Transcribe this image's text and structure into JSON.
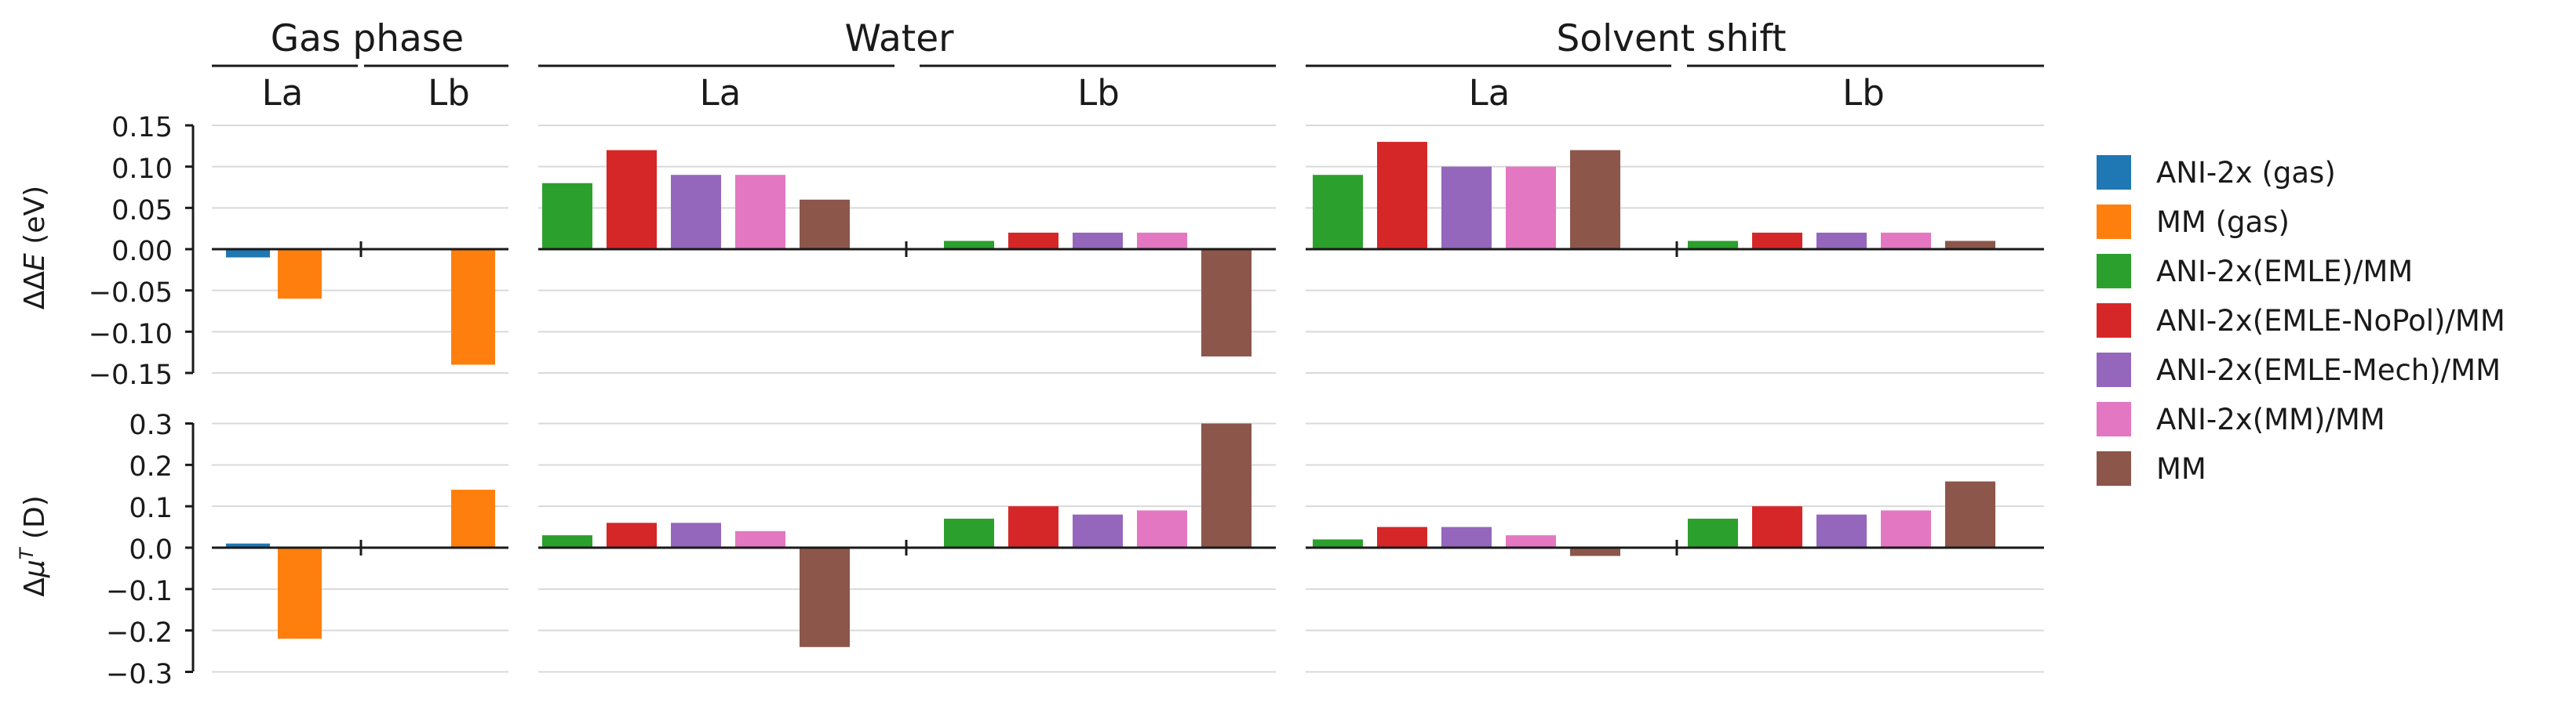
{
  "titles": {
    "gas": "Gas phase",
    "water": "Water",
    "shift": "Solvent shift",
    "la": "La",
    "lb": "Lb"
  },
  "rows": [
    {
      "key": "energy",
      "ylabel_prefix": "ΔΔ",
      "ylabel_symbol": "E",
      "ylabel_suffix": " (eV)",
      "ylim": [
        -0.15,
        0.15
      ],
      "ticks": [
        "0.15",
        "0.10",
        "0.05",
        "0.00",
        "−0.05",
        "−0.10",
        "−0.15"
      ]
    },
    {
      "key": "dipole",
      "ylabel_prefix": "Δ",
      "ylabel_symbol": "μ",
      "ylabel_sup": "T",
      "ylabel_suffix": " (D)",
      "ylim": [
        -0.3,
        0.3
      ],
      "ticks": [
        "0.3",
        "0.2",
        "0.1",
        "0.0",
        "−0.1",
        "−0.2",
        "−0.3"
      ]
    }
  ],
  "legend": [
    {
      "name": "ANI-2x (gas)",
      "color": "#1f77b4"
    },
    {
      "name": "MM (gas)",
      "color": "#ff7f0e"
    },
    {
      "name": "ANI-2x(EMLE)/MM",
      "color": "#2ca02c"
    },
    {
      "name": "ANI-2x(EMLE-NoPol)/MM",
      "color": "#d62728"
    },
    {
      "name": "ANI-2x(EMLE-Mech)/MM",
      "color": "#9467bd"
    },
    {
      "name": "ANI-2x(MM)/MM",
      "color": "#e377c2"
    },
    {
      "name": "MM",
      "color": "#8c564b"
    }
  ],
  "chart_data": [
    {
      "type": "bar",
      "panel": "Gas phase",
      "categories": [
        "La",
        "Lb"
      ],
      "series_order": [
        "ANI-2x (gas)",
        "MM (gas)"
      ],
      "energy_ylabel": "ΔΔE (eV)",
      "dipole_ylabel": "Δμ^T (D)",
      "energy": {
        "ANI-2x (gas)": [
          -0.01,
          0.0
        ],
        "MM (gas)": [
          -0.06,
          -0.14
        ]
      },
      "dipole": {
        "ANI-2x (gas)": [
          0.01,
          0.0
        ],
        "MM (gas)": [
          -0.22,
          0.14
        ]
      }
    },
    {
      "type": "bar",
      "panel": "Water",
      "categories": [
        "La",
        "Lb"
      ],
      "series_order": [
        "ANI-2x(EMLE)/MM",
        "ANI-2x(EMLE-NoPol)/MM",
        "ANI-2x(EMLE-Mech)/MM",
        "ANI-2x(MM)/MM",
        "MM"
      ],
      "energy": {
        "ANI-2x(EMLE)/MM": [
          0.08,
          0.01
        ],
        "ANI-2x(EMLE-NoPol)/MM": [
          0.12,
          0.02
        ],
        "ANI-2x(EMLE-Mech)/MM": [
          0.09,
          0.02
        ],
        "ANI-2x(MM)/MM": [
          0.09,
          0.02
        ],
        "MM": [
          0.06,
          -0.13
        ]
      },
      "dipole": {
        "ANI-2x(EMLE)/MM": [
          0.03,
          0.07
        ],
        "ANI-2x(EMLE-NoPol)/MM": [
          0.06,
          0.1
        ],
        "ANI-2x(EMLE-Mech)/MM": [
          0.06,
          0.08
        ],
        "ANI-2x(MM)/MM": [
          0.04,
          0.09
        ],
        "MM": [
          -0.24,
          0.3
        ]
      }
    },
    {
      "type": "bar",
      "panel": "Solvent shift",
      "categories": [
        "La",
        "Lb"
      ],
      "series_order": [
        "ANI-2x(EMLE)/MM",
        "ANI-2x(EMLE-NoPol)/MM",
        "ANI-2x(EMLE-Mech)/MM",
        "ANI-2x(MM)/MM",
        "MM"
      ],
      "energy": {
        "ANI-2x(EMLE)/MM": [
          0.09,
          0.01
        ],
        "ANI-2x(EMLE-NoPol)/MM": [
          0.13,
          0.02
        ],
        "ANI-2x(EMLE-Mech)/MM": [
          0.1,
          0.02
        ],
        "ANI-2x(MM)/MM": [
          0.1,
          0.02
        ],
        "MM": [
          0.12,
          0.01
        ]
      },
      "dipole": {
        "ANI-2x(EMLE)/MM": [
          0.02,
          0.07
        ],
        "ANI-2x(EMLE-NoPol)/MM": [
          0.05,
          0.1
        ],
        "ANI-2x(EMLE-Mech)/MM": [
          0.05,
          0.08
        ],
        "ANI-2x(MM)/MM": [
          0.03,
          0.09
        ],
        "MM": [
          -0.02,
          0.16
        ]
      }
    }
  ]
}
